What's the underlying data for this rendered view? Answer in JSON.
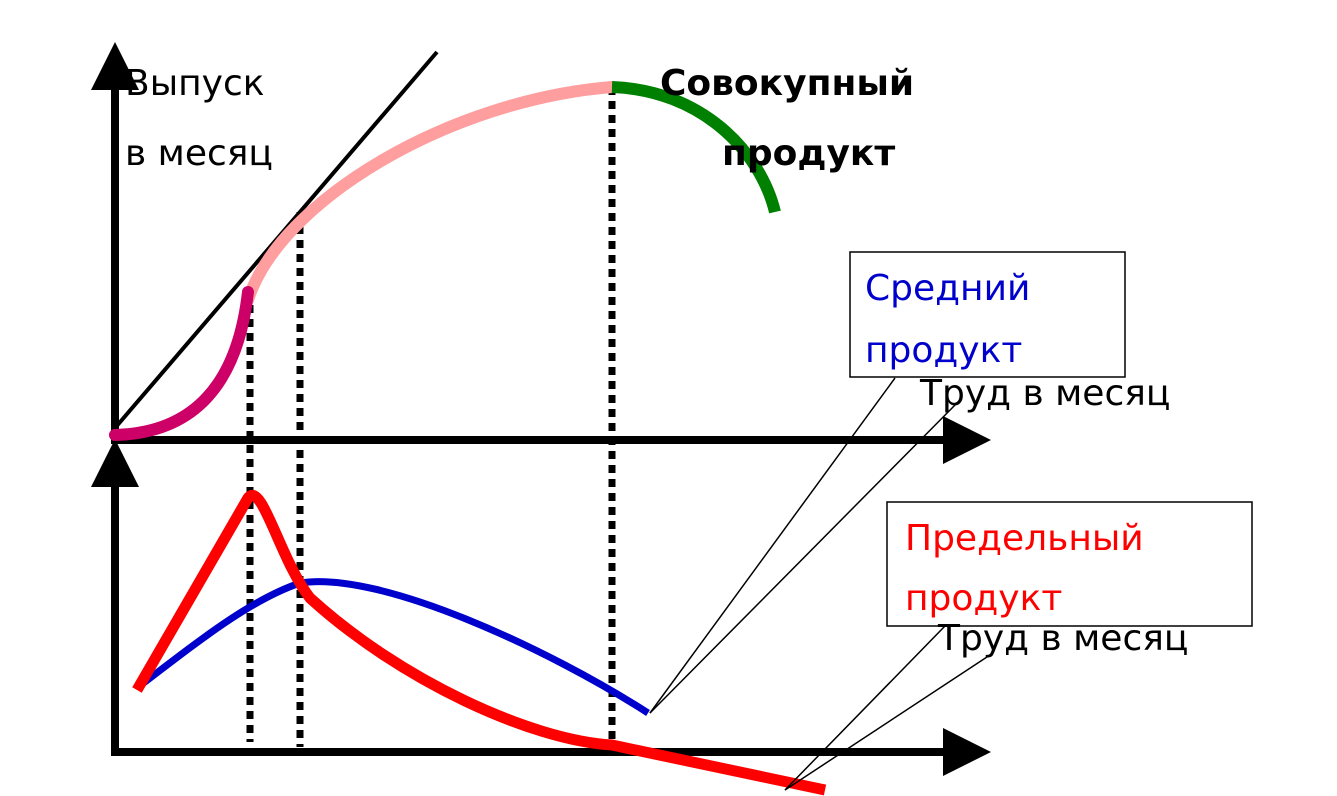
{
  "output_label": [
    "Выпуск",
    "в месяц"
  ],
  "total_product_label": [
    "Совокупный",
    "продукт"
  ],
  "average_product": {
    "label": [
      "Средний",
      "продукт"
    ],
    "axis_label": "Труд в месяц"
  },
  "marginal_product": {
    "label": [
      "Предельный",
      "продукт"
    ],
    "axis_label": "Труд в месяц"
  }
}
